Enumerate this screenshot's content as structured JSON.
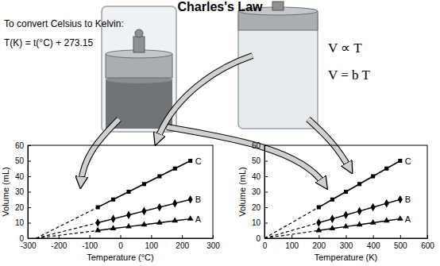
{
  "title": "Charles's Law",
  "texts": [
    "To convert Celsius to Kelvin:",
    "T(K) = t(°C) + 273.15",
    "V ∝ T",
    "V = b T"
  ],
  "chart_data": [
    {
      "type": "line",
      "xlabel": "Temperature (°C)",
      "ylabel": "Volume (mL)",
      "x": [
        -73,
        -23,
        27,
        77,
        127,
        177,
        227
      ],
      "xlim": [
        -300,
        300
      ],
      "xticks": [
        -300,
        -200,
        -100,
        0,
        100,
        200,
        300
      ],
      "ylim": [
        0,
        60
      ],
      "yticks": [
        0,
        10,
        20,
        30,
        40,
        50,
        60
      ],
      "grid": false,
      "series": [
        {
          "name": "C",
          "color": "#000000",
          "marker": "square",
          "line_style": "solid",
          "values": [
            20,
            25,
            30,
            35,
            40,
            45,
            50
          ],
          "extrapolation": {
            "x": [
              -273.15
            ],
            "values": [
              0
            ]
          }
        },
        {
          "name": "B",
          "color": "#000000",
          "marker": "diamond",
          "line_style": "solid",
          "values": [
            10,
            12.5,
            15,
            17.5,
            20,
            22.5,
            25
          ],
          "extrapolation": {
            "x": [
              -273.15
            ],
            "values": [
              0
            ]
          }
        },
        {
          "name": "A",
          "color": "#000000",
          "marker": "triangle",
          "line_style": "solid",
          "values": [
            5,
            6.25,
            7.5,
            8.75,
            10,
            11.25,
            12.5
          ],
          "extrapolation": {
            "x": [
              -273.15
            ],
            "values": [
              0
            ]
          }
        }
      ]
    },
    {
      "type": "line",
      "xlabel": "Temperature (K)",
      "ylabel": "Volume (mL)",
      "x": [
        200,
        250,
        300,
        350,
        400,
        450,
        500
      ],
      "xlim": [
        0,
        600
      ],
      "xticks": [
        0,
        100,
        200,
        300,
        400,
        500,
        600
      ],
      "ylim": [
        0,
        60
      ],
      "yticks": [
        0,
        10,
        20,
        30,
        40,
        50,
        60
      ],
      "grid": false,
      "series": [
        {
          "name": "C",
          "color": "#000000",
          "marker": "square",
          "line_style": "solid",
          "values": [
            20,
            25,
            30,
            35,
            40,
            45,
            50
          ],
          "extrapolation": {
            "x": [
              0
            ],
            "values": [
              0
            ]
          }
        },
        {
          "name": "B",
          "color": "#000000",
          "marker": "diamond",
          "line_style": "solid",
          "values": [
            10,
            12.5,
            15,
            17.5,
            20,
            22.5,
            25
          ],
          "extrapolation": {
            "x": [
              0
            ],
            "values": [
              0
            ]
          }
        },
        {
          "name": "A",
          "color": "#000000",
          "marker": "triangle",
          "line_style": "solid",
          "values": [
            5,
            6.25,
            7.5,
            8.75,
            10,
            11.25,
            12.5
          ],
          "extrapolation": {
            "x": [
              0
            ],
            "values": [
              0
            ]
          }
        }
      ]
    }
  ]
}
